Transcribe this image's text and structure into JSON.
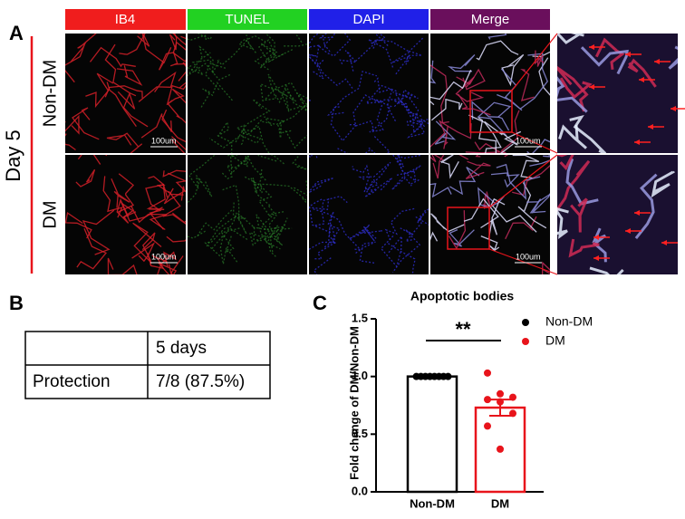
{
  "panel_a": {
    "label": "A",
    "channels": [
      "IB4",
      "TUNEL",
      "DAPI",
      "Merge"
    ],
    "time": "Day 5",
    "rows": [
      "Non-DM",
      "DM"
    ],
    "scale_bar": "100um"
  },
  "panel_b": {
    "label": "B",
    "table": {
      "header": [
        "",
        "5 days"
      ],
      "rows": [
        [
          "Protection",
          "7/8 (87.5%)"
        ]
      ]
    }
  },
  "panel_c": {
    "label": "C"
  },
  "chart_data": {
    "type": "bar",
    "title": "Apoptotic bodies",
    "y_label": "Fold change of DM/Non-DM",
    "categories": [
      "Non-DM",
      "DM"
    ],
    "values": [
      1.0,
      0.73
    ],
    "errors": [
      null,
      0.07
    ],
    "colors": [
      "#000000",
      "#e8141b"
    ],
    "points": [
      [
        1.0,
        1.0,
        1.0,
        1.0,
        1.0,
        1.0,
        1.0,
        1.0
      ],
      [
        1.03,
        0.85,
        0.82,
        0.8,
        0.78,
        0.68,
        0.57,
        0.37
      ]
    ],
    "ylim": [
      0,
      1.5
    ],
    "yticks": [
      {
        "value": 0,
        "label": "0.0"
      },
      0.5,
      {
        "value": 1,
        "label": "1.0"
      },
      1.5
    ],
    "annotation": "**",
    "legend": "upper right"
  }
}
